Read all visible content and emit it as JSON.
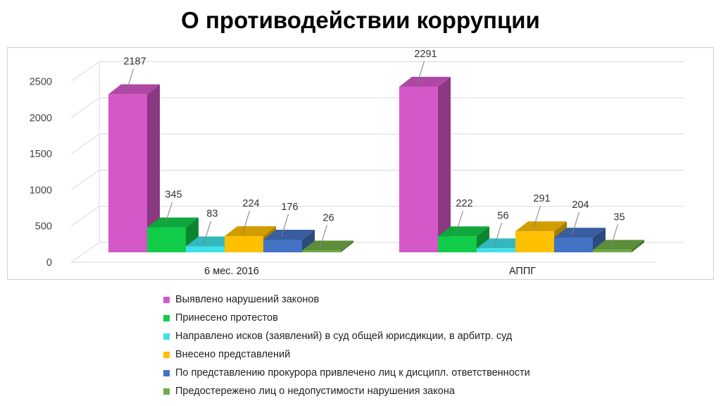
{
  "title": "О противодействии коррупции",
  "chart_data": {
    "type": "bar",
    "categories": [
      "6 мес.  2016",
      "АППГ"
    ],
    "series": [
      {
        "name": "Выявлено нарушений законов",
        "values": [
          2187,
          2291
        ],
        "color": "#d458c8"
      },
      {
        "name": "Принесено протестов",
        "values": [
          345,
          222
        ],
        "color": "#11cc48"
      },
      {
        "name": "Направлено исков (заявлений)  в суд общей юрисдикции, в арбитр. суд",
        "values": [
          83,
          56
        ],
        "color": "#3fe0e8"
      },
      {
        "name": "Внесено  представлений",
        "values": [
          224,
          291
        ],
        "color": "#ffc000"
      },
      {
        "name": "По представлению  прокурора привлечено лиц к дисципл. ответственности",
        "values": [
          176,
          204
        ],
        "color": "#4472c4"
      },
      {
        "name": "Предостережено лиц о недопустимости нарушения  закона",
        "values": [
          26,
          35
        ],
        "color": "#70ad47"
      }
    ],
    "yticks": [
      "0",
      "500",
      "1000",
      "1500",
      "2000",
      "2500"
    ],
    "ylim": [
      0,
      2500
    ],
    "grid": true,
    "legend": "bottom",
    "three_d": true
  }
}
